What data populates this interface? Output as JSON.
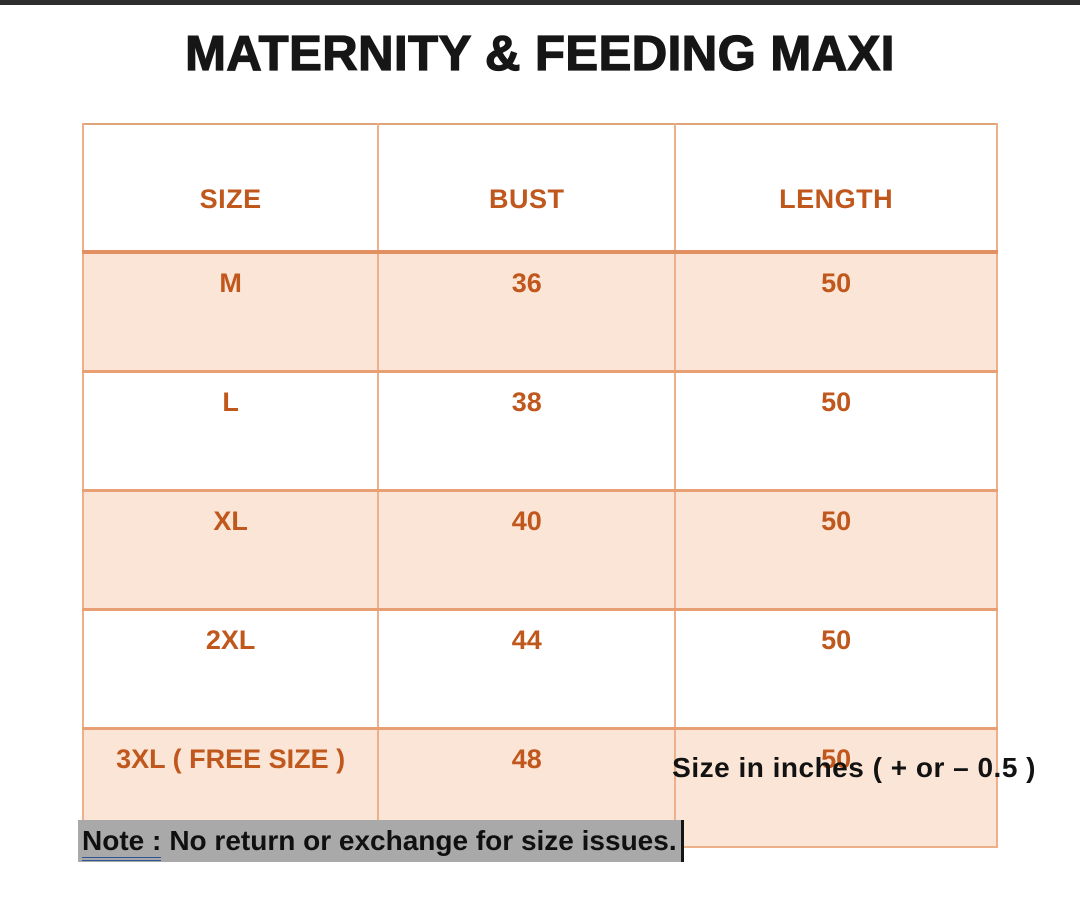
{
  "page": {
    "title": "MATERNITY & FEEDING MAXI",
    "units_note": "Size in inches ( + or – 0.5 )",
    "note_label": "Note :",
    "note_text": "No return or exchange for size issues."
  },
  "table": {
    "headers": [
      "SIZE",
      "BUST",
      "LENGTH"
    ],
    "rows": [
      {
        "size": "M",
        "bust": "36",
        "length": "50",
        "shaded": true
      },
      {
        "size": "L",
        "bust": "38",
        "length": "50",
        "shaded": false
      },
      {
        "size": "XL",
        "bust": "40",
        "length": "50",
        "shaded": true
      },
      {
        "size": "2XL",
        "bust": "44",
        "length": "50",
        "shaded": false
      },
      {
        "size": "3XL ( FREE SIZE )",
        "bust": "48",
        "length": "50",
        "shaded": true
      }
    ],
    "units": "inches",
    "tolerance": "+ or – 0.5"
  },
  "colors": {
    "accent_text": "#C0571C",
    "band_fill": "#FBE5D6",
    "table_border": "#EEB08A",
    "header_rule": "#E28F61",
    "note_highlight": "#A9A9A9",
    "note_underline": "#2F5496",
    "top_strip": "#2E2E2E"
  }
}
